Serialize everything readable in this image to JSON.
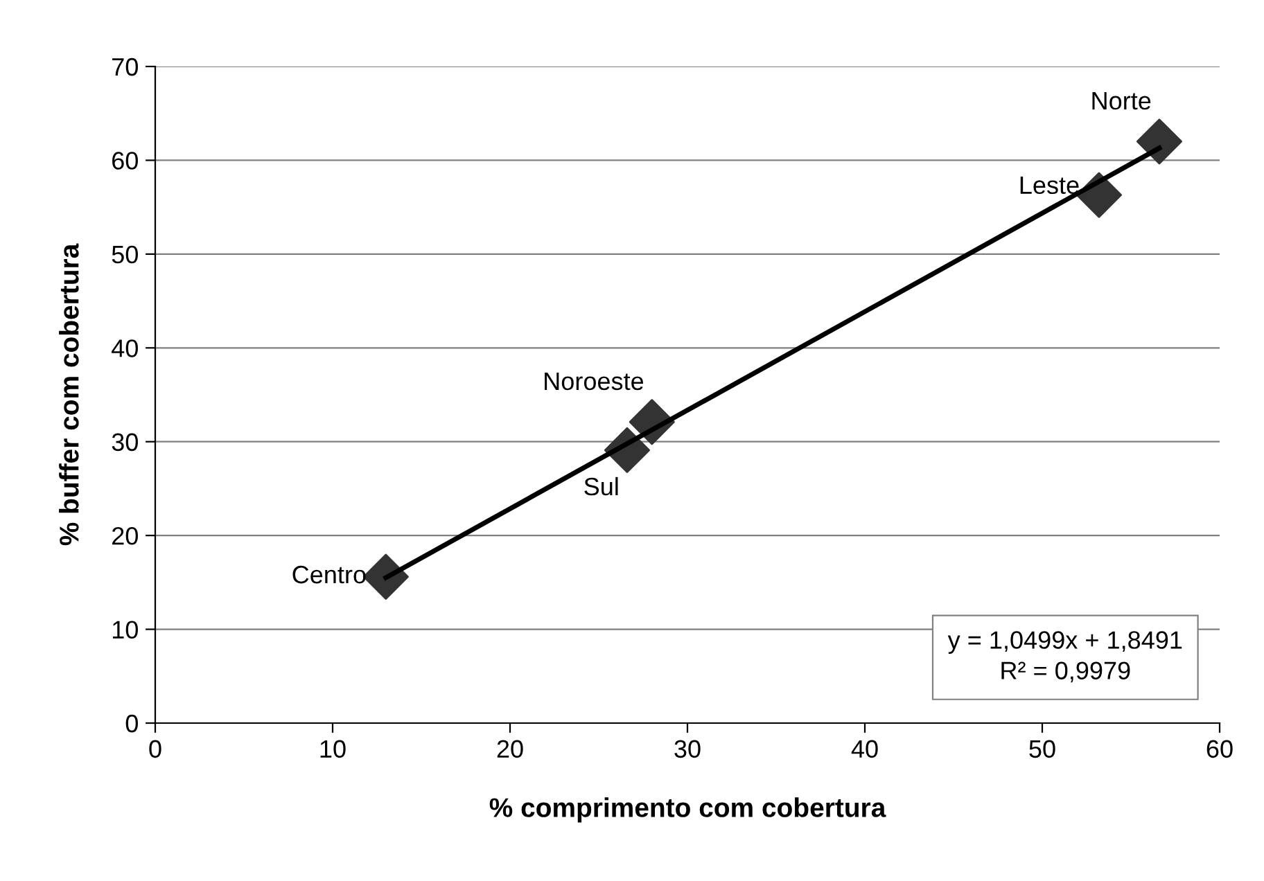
{
  "chart_data": {
    "type": "scatter",
    "xlabel": "% comprimento com cobertura",
    "ylabel": "% buffer com cobertura",
    "xlim": [
      0,
      60
    ],
    "xticks": [
      0,
      10,
      20,
      30,
      40,
      50,
      60
    ],
    "ylim": [
      0,
      70
    ],
    "yticks": [
      0,
      10,
      20,
      30,
      40,
      50,
      60,
      70
    ],
    "grid": "y",
    "legend": false,
    "series": [
      {
        "marker": "diamond",
        "color": "#333333",
        "x": [
          13.0,
          26.6,
          28.0,
          53.2,
          56.6
        ],
        "values": [
          15.6,
          29.1,
          32.1,
          56.3,
          62.0
        ]
      },
      {
        "type": "line",
        "marker": "none",
        "color": "#000000",
        "line_style": "solid",
        "x": [
          13.0,
          56.6
        ],
        "values": [
          15.5,
          61.3
        ]
      }
    ],
    "annotations": [
      {
        "text": "Centro",
        "x": 13.0,
        "y": 15.6
      },
      {
        "text": "Sul",
        "x": 26.6,
        "y": 29.1
      },
      {
        "text": "Noroeste",
        "x": 28.0,
        "y": 32.1
      },
      {
        "text": "Leste",
        "x": 53.2,
        "y": 56.3
      },
      {
        "text": "Norte",
        "x": 56.6,
        "y": 62.0
      },
      "y = 1,0499x + 1,8491",
      "R² = 0,9979"
    ]
  }
}
